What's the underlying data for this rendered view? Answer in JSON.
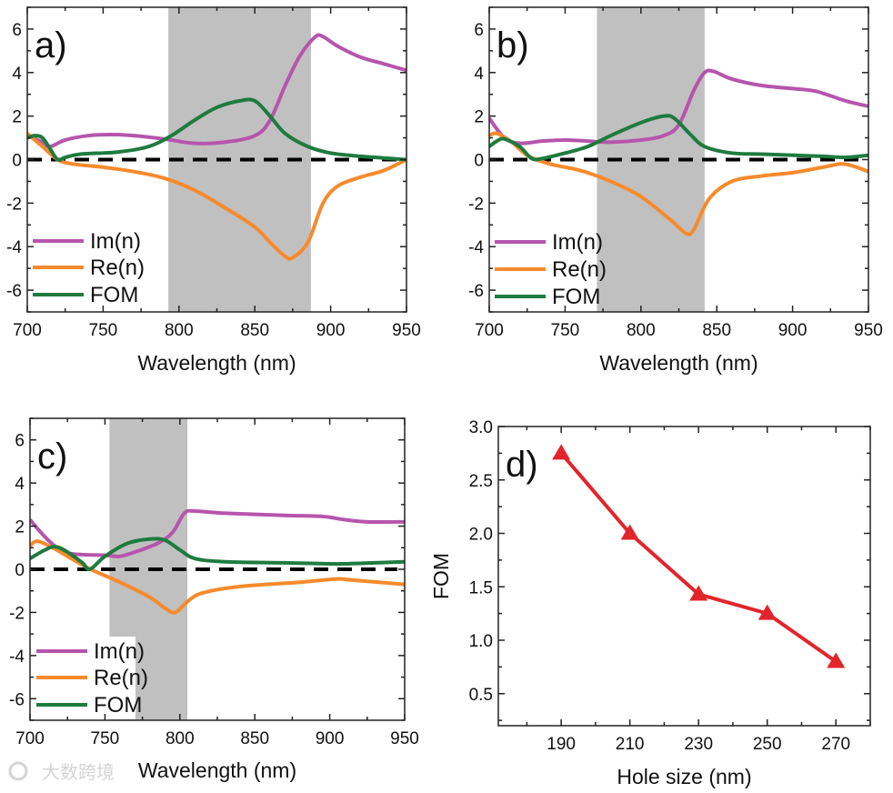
{
  "chart_data": [
    {
      "type": "line",
      "panel_label": "a)",
      "xlabel": "Wavelength (nm)",
      "ylabel": "",
      "xlim": [
        700,
        950
      ],
      "ylim": [
        -7,
        7
      ],
      "xticks": [
        700,
        750,
        800,
        850,
        900,
        950
      ],
      "yticks": [
        -6,
        -4,
        -2,
        0,
        2,
        4,
        6
      ],
      "shaded_band": [
        793,
        887
      ],
      "reference_line": {
        "y": 0,
        "style": "dashed",
        "color": "#000000"
      },
      "legend_placement": "bottom-left",
      "series": [
        {
          "name": "Im(n)",
          "color": "#B655AD",
          "x": [
            700,
            710,
            715,
            725,
            740,
            755,
            770,
            790,
            810,
            830,
            850,
            860,
            870,
            880,
            890,
            895,
            905,
            920,
            935,
            950
          ],
          "y": [
            1.1,
            0.8,
            0.6,
            0.9,
            1.1,
            1.15,
            1.1,
            0.95,
            0.75,
            0.8,
            1.1,
            1.8,
            3.4,
            4.8,
            5.65,
            5.65,
            5.2,
            4.7,
            4.4,
            4.1
          ]
        },
        {
          "name": "Re(n)",
          "color": "#F78A2C",
          "x": [
            700,
            710,
            720,
            730,
            750,
            770,
            790,
            810,
            830,
            850,
            860,
            870,
            875,
            885,
            895,
            905,
            920,
            935,
            950
          ],
          "y": [
            1.2,
            0.6,
            0.0,
            -0.2,
            -0.35,
            -0.55,
            -0.85,
            -1.4,
            -2.2,
            -3.1,
            -3.8,
            -4.45,
            -4.5,
            -3.8,
            -2.0,
            -1.2,
            -0.8,
            -0.5,
            0.0
          ]
        },
        {
          "name": "FOM",
          "color": "#1E7B3E",
          "x": [
            700,
            705,
            710,
            715,
            720,
            725,
            735,
            760,
            780,
            795,
            810,
            825,
            840,
            850,
            860,
            870,
            885,
            900,
            920,
            950
          ],
          "y": [
            1.0,
            1.1,
            1.0,
            0.5,
            0.0,
            0.1,
            0.25,
            0.35,
            0.6,
            1.1,
            1.8,
            2.4,
            2.7,
            2.7,
            2.0,
            1.2,
            0.6,
            0.3,
            0.15,
            0.0
          ]
        }
      ]
    },
    {
      "type": "line",
      "panel_label": "b)",
      "xlabel": "Wavelength (nm)",
      "ylabel": "",
      "xlim": [
        700,
        950
      ],
      "ylim": [
        -7,
        7
      ],
      "xticks": [
        700,
        750,
        800,
        850,
        900,
        950
      ],
      "yticks": [
        -6,
        -4,
        -2,
        0,
        2,
        4,
        6
      ],
      "shaded_band": [
        771,
        842
      ],
      "reference_line": {
        "y": 0,
        "style": "dashed",
        "color": "#000000"
      },
      "legend_placement": "bottom-left",
      "series": [
        {
          "name": "Im(n)",
          "color": "#B655AD",
          "x": [
            700,
            710,
            720,
            735,
            750,
            765,
            780,
            800,
            815,
            825,
            835,
            842,
            848,
            860,
            880,
            910,
            920,
            935,
            950
          ],
          "y": [
            1.9,
            1.0,
            0.75,
            0.85,
            0.9,
            0.85,
            0.8,
            0.9,
            1.1,
            1.6,
            3.2,
            4.0,
            4.05,
            3.7,
            3.4,
            3.2,
            3.05,
            2.7,
            2.45
          ]
        },
        {
          "name": "Re(n)",
          "color": "#F78A2C",
          "x": [
            700,
            705,
            715,
            725,
            740,
            760,
            780,
            800,
            820,
            830,
            835,
            845,
            860,
            880,
            900,
            920,
            932,
            940,
            950
          ],
          "y": [
            1.1,
            1.2,
            0.8,
            0.2,
            -0.2,
            -0.5,
            -1.0,
            -1.7,
            -2.8,
            -3.4,
            -3.2,
            -1.8,
            -1.0,
            -0.75,
            -0.6,
            -0.35,
            -0.2,
            -0.3,
            -0.55
          ]
        },
        {
          "name": "FOM",
          "color": "#1E7B3E",
          "x": [
            700,
            705,
            710,
            720,
            728,
            735,
            750,
            765,
            780,
            800,
            815,
            822,
            832,
            842,
            860,
            880,
            920,
            935,
            950
          ],
          "y": [
            0.6,
            0.85,
            0.95,
            0.6,
            0.05,
            0.05,
            0.3,
            0.6,
            1.1,
            1.7,
            2.0,
            1.9,
            1.2,
            0.6,
            0.3,
            0.25,
            0.15,
            0.1,
            0.2
          ]
        }
      ]
    },
    {
      "type": "line",
      "panel_label": "c)",
      "xlabel": "Wavelength (nm)",
      "ylabel": "",
      "xlim": [
        700,
        950
      ],
      "ylim": [
        -7,
        7
      ],
      "xticks": [
        700,
        750,
        800,
        850,
        900,
        950
      ],
      "yticks": [
        -6,
        -4,
        -2,
        0,
        2,
        4,
        6
      ],
      "shaded_band": [
        753,
        805
      ],
      "reference_line": {
        "y": 0,
        "style": "dashed",
        "color": "#000000"
      },
      "legend_placement": "bottom-left",
      "series": [
        {
          "name": "Im(n)",
          "color": "#B655AD",
          "x": [
            700,
            710,
            720,
            730,
            750,
            760,
            770,
            785,
            795,
            803,
            810,
            830,
            870,
            895,
            910,
            925,
            950
          ],
          "y": [
            2.3,
            1.5,
            0.9,
            0.7,
            0.65,
            0.6,
            0.8,
            1.2,
            1.7,
            2.6,
            2.7,
            2.6,
            2.5,
            2.45,
            2.3,
            2.2,
            2.2
          ]
        },
        {
          "name": "Re(n)",
          "color": "#F78A2C",
          "x": [
            700,
            705,
            715,
            730,
            742,
            760,
            780,
            790,
            797,
            805,
            815,
            840,
            880,
            905,
            915,
            950
          ],
          "y": [
            1.1,
            1.3,
            1.0,
            0.4,
            -0.05,
            -0.6,
            -1.3,
            -1.8,
            -2.0,
            -1.5,
            -1.1,
            -0.8,
            -0.6,
            -0.45,
            -0.5,
            -0.7
          ]
        },
        {
          "name": "FOM",
          "color": "#1E7B3E",
          "x": [
            700,
            710,
            717,
            725,
            735,
            740,
            750,
            765,
            780,
            790,
            800,
            810,
            830,
            870,
            905,
            930,
            950
          ],
          "y": [
            0.5,
            0.9,
            1.05,
            0.8,
            0.3,
            0.0,
            0.6,
            1.2,
            1.4,
            1.35,
            0.9,
            0.5,
            0.35,
            0.3,
            0.25,
            0.3,
            0.35
          ]
        }
      ]
    },
    {
      "type": "line",
      "panel_label": "d)",
      "xlabel": "Hole size (nm)",
      "ylabel": "FOM",
      "xlim": [
        171.7,
        280
      ],
      "ylim": [
        0.2,
        3.0
      ],
      "xticks": [
        190,
        210,
        230,
        250,
        270
      ],
      "yticks": [
        0.5,
        1.0,
        1.5,
        2.0,
        2.5,
        3.0
      ],
      "ytick_labels": [
        "0.5",
        "1.0",
        "1.5",
        "2.0",
        "2.5",
        "3.0"
      ],
      "marker": "triangle",
      "series": [
        {
          "name": "FOM",
          "color": "#E3242B",
          "x": [
            190,
            210,
            230,
            250,
            270
          ],
          "y": [
            2.75,
            2.0,
            1.43,
            1.25,
            0.8
          ]
        }
      ]
    }
  ],
  "watermark": "大数跨境"
}
